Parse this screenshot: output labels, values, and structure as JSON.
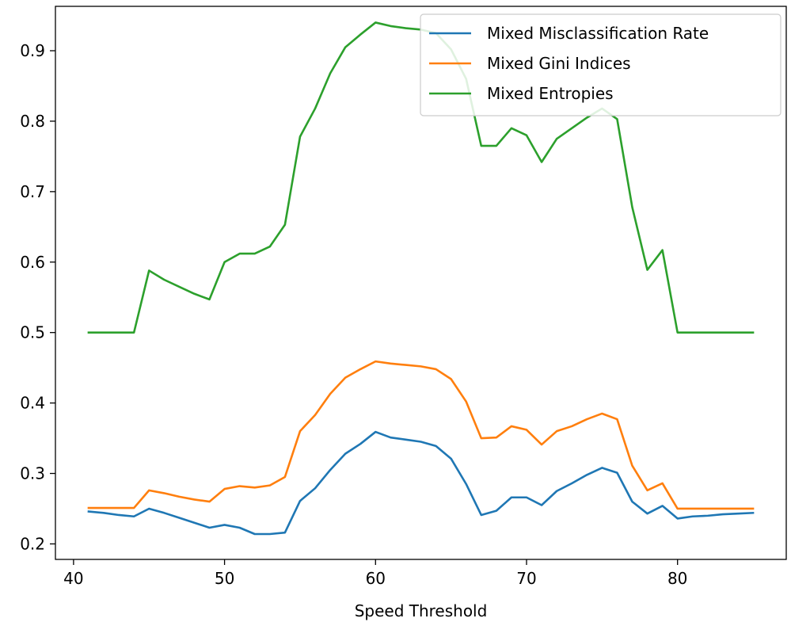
{
  "chart_data": {
    "type": "line",
    "title": "",
    "xlabel": "Speed Threshold",
    "ylabel": "",
    "xlim": [
      38.8,
      87.2
    ],
    "ylim": [
      0.178,
      0.963
    ],
    "xticks": [
      40,
      50,
      60,
      70,
      80
    ],
    "yticks": [
      0.2,
      0.3,
      0.4,
      0.5,
      0.6,
      0.7,
      0.8,
      0.9
    ],
    "grid": false,
    "legend_position": "top-right",
    "x": [
      41,
      42,
      43,
      44,
      45,
      46,
      47,
      48,
      49,
      50,
      51,
      52,
      53,
      54,
      55,
      56,
      57,
      58,
      59,
      60,
      61,
      62,
      63,
      64,
      65,
      66,
      67,
      68,
      69,
      70,
      71,
      72,
      73,
      74,
      75,
      76,
      77,
      78,
      79,
      80,
      81,
      82,
      83,
      84,
      85
    ],
    "series": [
      {
        "name": "Mixed Misclassification Rate",
        "color": "#1f77b4",
        "values": [
          0.246,
          0.244,
          0.241,
          0.239,
          0.25,
          0.244,
          0.237,
          0.23,
          0.223,
          0.227,
          0.223,
          0.214,
          0.214,
          0.216,
          0.261,
          0.279,
          0.305,
          0.328,
          0.342,
          0.359,
          0.351,
          0.348,
          0.345,
          0.339,
          0.321,
          0.285,
          0.241,
          0.247,
          0.266,
          0.266,
          0.255,
          0.275,
          0.286,
          0.298,
          0.308,
          0.301,
          0.26,
          0.243,
          0.254,
          0.236,
          0.239,
          0.24,
          0.242,
          0.243,
          0.244
        ]
      },
      {
        "name": "Mixed Gini Indices",
        "color": "#ff7f0e",
        "values": [
          0.251,
          0.251,
          0.251,
          0.251,
          0.276,
          0.272,
          0.267,
          0.263,
          0.26,
          0.278,
          0.282,
          0.28,
          0.283,
          0.295,
          0.36,
          0.383,
          0.413,
          0.436,
          0.448,
          0.459,
          0.456,
          0.454,
          0.452,
          0.448,
          0.434,
          0.402,
          0.35,
          0.351,
          0.367,
          0.362,
          0.341,
          0.36,
          0.367,
          0.377,
          0.385,
          0.377,
          0.311,
          0.276,
          0.286,
          0.25,
          0.25,
          0.25,
          0.25,
          0.25,
          0.25
        ]
      },
      {
        "name": "Mixed Entropies",
        "color": "#2ca02c",
        "values": [
          0.5,
          0.5,
          0.5,
          0.5,
          0.588,
          0.575,
          0.565,
          0.555,
          0.547,
          0.6,
          0.612,
          0.612,
          0.622,
          0.653,
          0.778,
          0.818,
          0.868,
          0.905,
          0.923,
          0.94,
          0.935,
          0.932,
          0.93,
          0.925,
          0.902,
          0.86,
          0.765,
          0.765,
          0.79,
          0.78,
          0.742,
          0.775,
          0.79,
          0.805,
          0.818,
          0.803,
          0.678,
          0.589,
          0.617,
          0.5,
          0.5,
          0.5,
          0.5,
          0.5,
          0.5
        ]
      }
    ]
  }
}
